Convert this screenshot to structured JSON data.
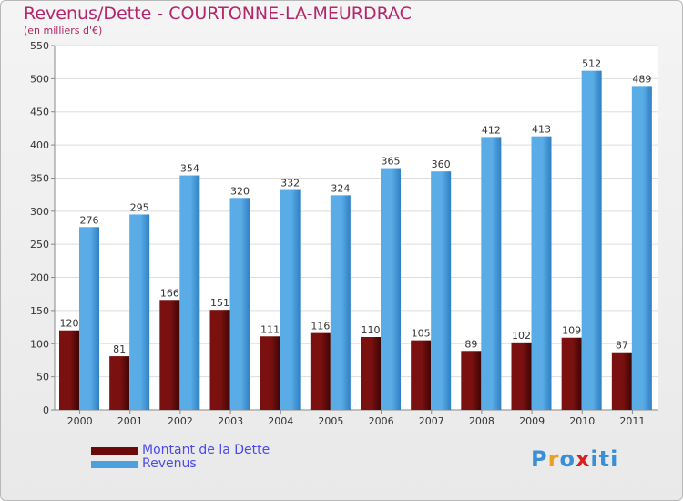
{
  "title": "Revenus/Dette - COURTONNE-LA-MEURDRAC",
  "subtitle": "(en milliers d'€)",
  "colors": {
    "dette": "#6b0a0a",
    "revenus": "#4d9fde",
    "title": "#b3266a",
    "legend_text": "#4a4af0"
  },
  "legend": {
    "dette_label": "Montant de la Dette",
    "revenus_label": "Revenus"
  },
  "logo": {
    "letters": [
      "P",
      "r",
      "o",
      "x",
      "i",
      "t",
      "i"
    ],
    "colors": [
      "#3a8fd8",
      "#e8a020",
      "#3a8fd8",
      "#d82020",
      "#3a8fd8",
      "#3a8fd8",
      "#3a8fd8"
    ]
  },
  "chart_data": {
    "type": "bar",
    "title": "Revenus/Dette - COURTONNE-LA-MEURDRAC",
    "ylabel": "(en milliers d'€)",
    "categories": [
      "2000",
      "2001",
      "2002",
      "2003",
      "2004",
      "2005",
      "2006",
      "2007",
      "2008",
      "2009",
      "2010",
      "2011"
    ],
    "series": [
      {
        "name": "Montant de la Dette",
        "values": [
          120,
          81,
          166,
          151,
          111,
          116,
          110,
          105,
          89,
          102,
          109,
          87
        ]
      },
      {
        "name": "Revenus",
        "values": [
          276,
          295,
          354,
          320,
          332,
          324,
          365,
          360,
          412,
          413,
          512,
          489
        ]
      }
    ],
    "ylim": [
      0,
      550
    ],
    "yticks": [
      0,
      50,
      100,
      150,
      200,
      250,
      300,
      350,
      400,
      450,
      500,
      550
    ],
    "grid": true,
    "legend": "bottom-left"
  }
}
